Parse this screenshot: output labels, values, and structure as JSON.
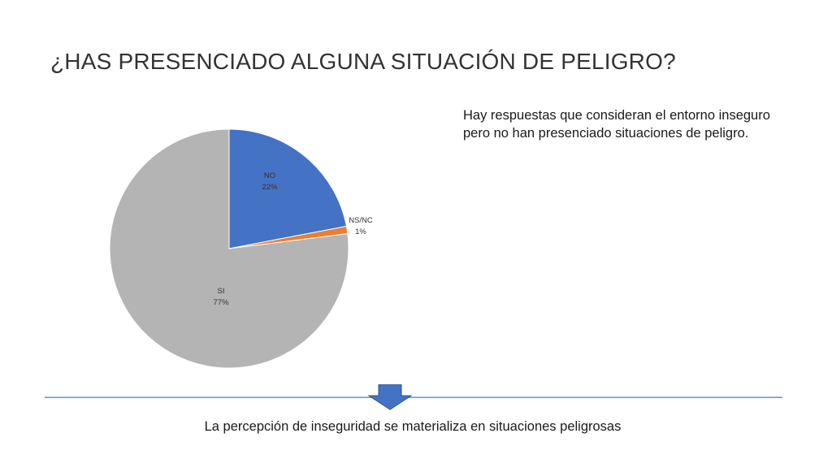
{
  "slide": {
    "title": "¿HAS PRESENCIADO ALGUNA SITUACIÓN DE PELIGRO?",
    "note_lines": [
      "Hay respuestas que consideran el entorno inseguro",
      "pero no han presenciado situaciones de peligro."
    ],
    "conclusion": "La percepción de inseguridad se materializa en situaciones peligrosas",
    "arrow_icon": "down-arrow-icon",
    "accent_color": "#4472C4"
  },
  "chart_data": {
    "type": "pie",
    "title": "",
    "slices": [
      {
        "category": "NO",
        "value": 22,
        "label": "22%",
        "color": "#4472C4"
      },
      {
        "category": "NS/NC",
        "value": 1,
        "label": "1%",
        "color": "#ED7D31"
      },
      {
        "category": "SI",
        "value": 77,
        "label": "77%",
        "color": "#B4B4B4"
      }
    ],
    "start_angle": "12 o'clock",
    "direction": "clockwise",
    "legend": "none"
  }
}
